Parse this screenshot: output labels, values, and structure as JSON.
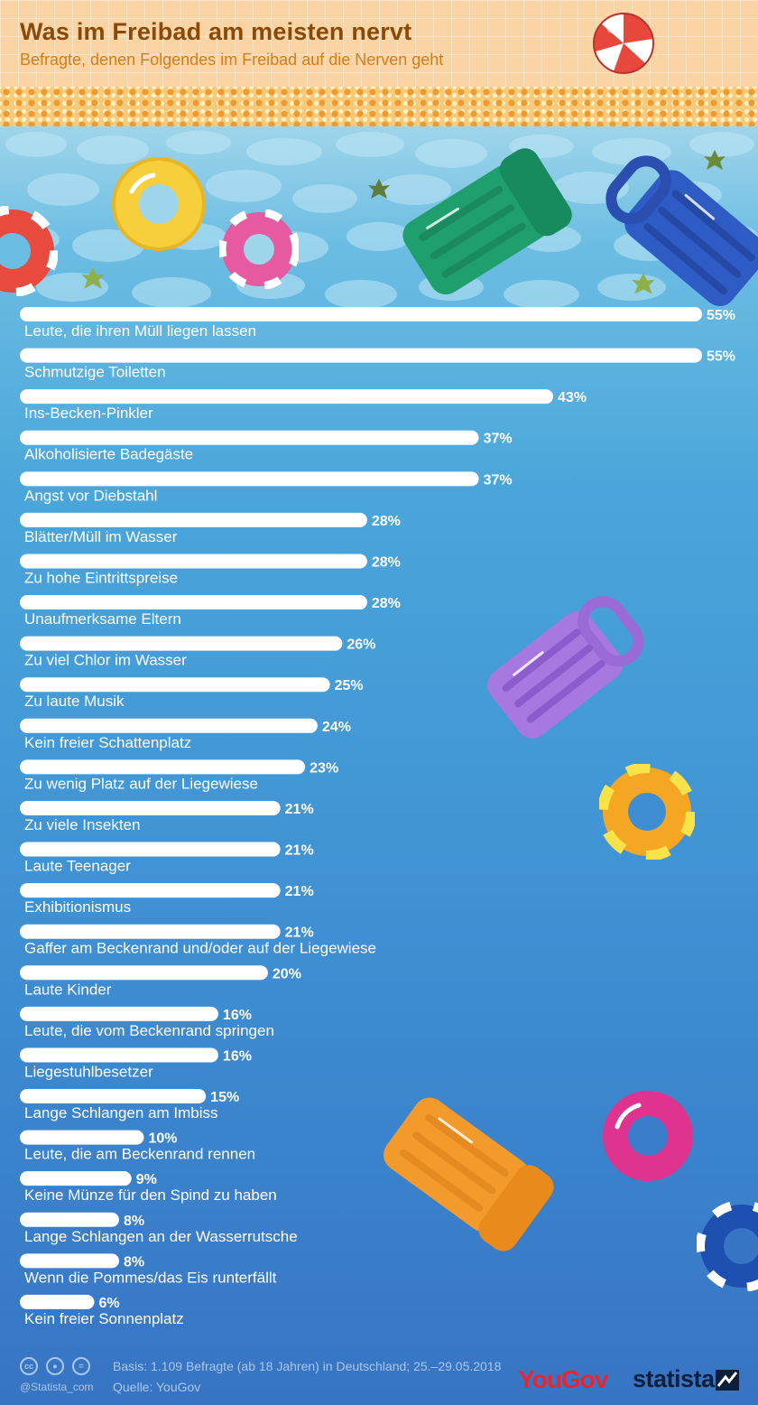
{
  "header": {
    "title": "Was im Freibad am meisten nervt",
    "subtitle": "Befragte, denen Folgendes im Freibad auf die Nerven geht"
  },
  "colors": {
    "title": "#8a4a06",
    "subtitle": "#d27e1e",
    "bar": "#ffffff",
    "water_top": "#9fd5ea",
    "water_bottom": "#3774c4"
  },
  "decorations": [
    "beach-ball",
    "swim-ring-red",
    "swim-ring-yellow",
    "swim-ring-pink",
    "air-mattress-green",
    "air-mattress-blue",
    "air-mattress-purple",
    "swim-ring-orange",
    "swim-ring-magenta",
    "air-mattress-orange",
    "swim-ring-blue",
    "leaf"
  ],
  "chart_data": {
    "type": "bar",
    "orientation": "horizontal",
    "unit": "%",
    "xlim": [
      0,
      55
    ],
    "categories": [
      "Leute, die ihren Müll liegen lassen",
      "Schmutzige Toiletten",
      "Ins-Becken-Pinkler",
      "Alkoholisierte Badegäste",
      "Angst vor Diebstahl",
      "Blätter/Müll im Wasser",
      "Zu hohe Eintrittspreise",
      "Unaufmerksame Eltern",
      "Zu viel Chlor im Wasser",
      "Zu laute Musik",
      "Kein freier Schattenplatz",
      "Zu wenig Platz auf der Liegewiese",
      "Zu viele Insekten",
      "Laute Teenager",
      "Exhibitionismus",
      "Gaffer am Beckenrand und/oder auf der Liegewiese",
      "Laute Kinder",
      "Leute, die vom Beckenrand springen",
      "Liegestuhlbesetzer",
      "Lange Schlangen am Imbiss",
      "Leute, die am Beckenrand rennen",
      "Keine Münze für den Spind zu haben",
      "Lange Schlangen an der Wasserrutsche",
      "Wenn die Pommes/das Eis runterfällt",
      "Kein freier Sonnenplatz"
    ],
    "values": [
      55,
      55,
      43,
      37,
      37,
      28,
      28,
      28,
      26,
      25,
      24,
      23,
      21,
      21,
      21,
      21,
      20,
      16,
      16,
      15,
      10,
      9,
      8,
      8,
      6
    ]
  },
  "footer": {
    "cc_icons": [
      "cc",
      "by",
      "="
    ],
    "handle": "@Statista_com",
    "basis": "Basis: 1.109 Befragte (ab 18 Jahren) in Deutschland; 25.–29.05.2018",
    "source": "Quelle: YouGov",
    "logo_yougov": "YouGov",
    "logo_statista": "statista"
  }
}
